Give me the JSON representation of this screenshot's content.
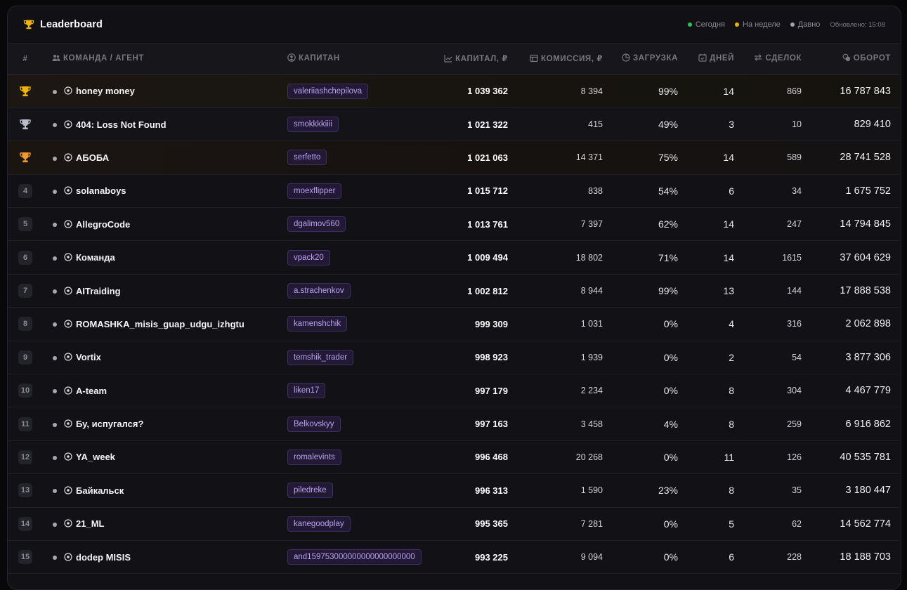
{
  "header": {
    "title": "Leaderboard",
    "legend": [
      {
        "label": "Сегодня",
        "color": "#22c55e"
      },
      {
        "label": "На неделе",
        "color": "#eab308"
      },
      {
        "label": "Давно",
        "color": "#a3a3ad"
      }
    ],
    "updated": "Обновлено: 15:08"
  },
  "columns": {
    "rank": "#",
    "team": "КОМАНДА / АГЕНТ",
    "captain": "КАПИТАН",
    "capital": "КАПИТАЛ, ₽",
    "commission": "КОМИССИЯ, ₽",
    "load": "ЗАГРУЗКА",
    "days": "ДНЕЙ",
    "deals": "СДЕЛОК",
    "turnover": "ОБОРОТ"
  },
  "colors": {
    "gold": "#f5b301",
    "silver": "#b8bcc6",
    "bronze": "#f29a2e",
    "chip_text": "#b8a2ef"
  },
  "rows": [
    {
      "rank": "1",
      "medal": "gold",
      "team": "honey money",
      "captain": "valeriiashchepilova",
      "capital": "1 039 362",
      "commission": "8 394",
      "load": "99%",
      "days": "14",
      "deals": "869",
      "turnover": "16 787 843"
    },
    {
      "rank": "2",
      "medal": "silver",
      "team": "404: Loss Not Found",
      "captain": "smokkkkiiii",
      "capital": "1 021 322",
      "commission": "415",
      "load": "49%",
      "days": "3",
      "deals": "10",
      "turnover": "829 410"
    },
    {
      "rank": "3",
      "medal": "bronze",
      "team": "АБОБА",
      "captain": "serfetto",
      "capital": "1 021 063",
      "commission": "14 371",
      "load": "75%",
      "days": "14",
      "deals": "589",
      "turnover": "28 741 528"
    },
    {
      "rank": "4",
      "medal": "",
      "team": "solanaboys",
      "captain": "moexflipper",
      "capital": "1 015 712",
      "commission": "838",
      "load": "54%",
      "days": "6",
      "deals": "34",
      "turnover": "1 675 752"
    },
    {
      "rank": "5",
      "medal": "",
      "team": "AllegroCode",
      "captain": "dgalimov560",
      "capital": "1 013 761",
      "commission": "7 397",
      "load": "62%",
      "days": "14",
      "deals": "247",
      "turnover": "14 794 845"
    },
    {
      "rank": "6",
      "medal": "",
      "team": "Команда",
      "captain": "vpack20",
      "capital": "1 009 494",
      "commission": "18 802",
      "load": "71%",
      "days": "14",
      "deals": "1615",
      "turnover": "37 604 629"
    },
    {
      "rank": "7",
      "medal": "",
      "team": "AITraiding",
      "captain": "a.strachenkov",
      "capital": "1 002 812",
      "commission": "8 944",
      "load": "99%",
      "days": "13",
      "deals": "144",
      "turnover": "17 888 538"
    },
    {
      "rank": "8",
      "medal": "",
      "team": "ROMASHKA_misis_guap_udgu_izhgtu",
      "captain": "kamenshchik",
      "capital": "999 309",
      "commission": "1 031",
      "load": "0%",
      "days": "4",
      "deals": "316",
      "turnover": "2 062 898"
    },
    {
      "rank": "9",
      "medal": "",
      "team": "Vortix",
      "captain": "temshik_trader",
      "capital": "998 923",
      "commission": "1 939",
      "load": "0%",
      "days": "2",
      "deals": "54",
      "turnover": "3 877 306"
    },
    {
      "rank": "10",
      "medal": "",
      "team": "A-team",
      "captain": "liken17",
      "capital": "997 179",
      "commission": "2 234",
      "load": "0%",
      "days": "8",
      "deals": "304",
      "turnover": "4 467 779"
    },
    {
      "rank": "11",
      "medal": "",
      "team": "Бу, испугался?",
      "captain": "Belkovskyy",
      "capital": "997 163",
      "commission": "3 458",
      "load": "4%",
      "days": "8",
      "deals": "259",
      "turnover": "6 916 862"
    },
    {
      "rank": "12",
      "medal": "",
      "team": "YA_week",
      "captain": "romalevints",
      "capital": "996 468",
      "commission": "20 268",
      "load": "0%",
      "days": "11",
      "deals": "126",
      "turnover": "40 535 781"
    },
    {
      "rank": "13",
      "medal": "",
      "team": "Байкальск",
      "captain": "piledreke",
      "capital": "996 313",
      "commission": "1 590",
      "load": "23%",
      "days": "8",
      "deals": "35",
      "turnover": "3 180 447"
    },
    {
      "rank": "14",
      "medal": "",
      "team": "21_ML",
      "captain": "kanegoodplay",
      "capital": "995 365",
      "commission": "7 281",
      "load": "0%",
      "days": "5",
      "deals": "62",
      "turnover": "14 562 774"
    },
    {
      "rank": "15",
      "medal": "",
      "team": "dodep MISIS",
      "captain": "and159753000000000000000000",
      "capital": "993 225",
      "commission": "9 094",
      "load": "0%",
      "days": "6",
      "deals": "228",
      "turnover": "18 188 703"
    }
  ]
}
